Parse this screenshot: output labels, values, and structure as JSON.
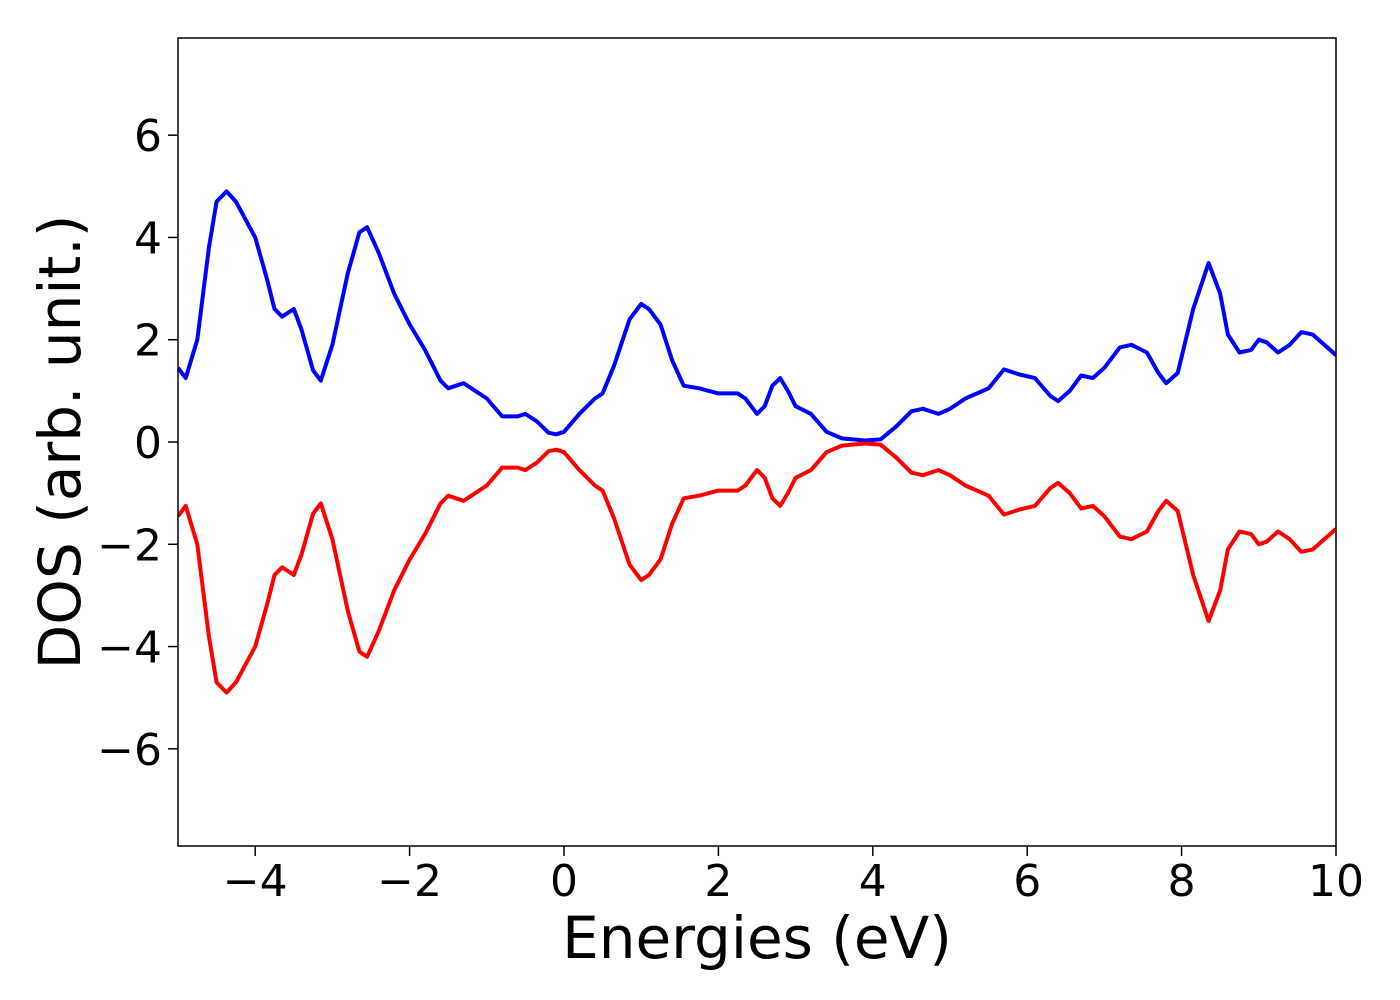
{
  "chart_data": {
    "type": "line",
    "xlabel": "Energies (eV)",
    "ylabel": "DOS (arb. unit.)",
    "x": [
      -5,
      -4.9,
      -4.75,
      -4.6,
      -4.5,
      -4.37,
      -4.25,
      -4.0,
      -3.85,
      -3.75,
      -3.65,
      -3.5,
      -3.4,
      -3.25,
      -3.15,
      -3.0,
      -2.8,
      -2.65,
      -2.55,
      -2.4,
      -2.2,
      -2.0,
      -1.8,
      -1.6,
      -1.5,
      -1.3,
      -1.2,
      -1.0,
      -0.8,
      -0.6,
      -0.5,
      -0.35,
      -0.2,
      -0.1,
      0,
      0.2,
      0.4,
      0.5,
      0.65,
      0.85,
      1.0,
      1.1,
      1.25,
      1.4,
      1.55,
      1.75,
      2.0,
      2.25,
      2.35,
      2.5,
      2.6,
      2.7,
      2.8,
      2.9,
      3.0,
      3.2,
      3.4,
      3.6,
      3.9,
      4.1,
      4.3,
      4.5,
      4.65,
      4.85,
      5.0,
      5.2,
      5.5,
      5.7,
      5.9,
      6.1,
      6.3,
      6.4,
      6.55,
      6.7,
      6.85,
      7.0,
      7.2,
      7.35,
      7.55,
      7.7,
      7.8,
      7.95,
      8.15,
      8.35,
      8.5,
      8.6,
      8.75,
      8.9,
      9.0,
      9.1,
      9.25,
      9.4,
      9.55,
      9.7,
      10.0
    ],
    "series": [
      {
        "color": "#0000ff",
        "values": [
          1.45,
          1.25,
          2.0,
          3.8,
          4.7,
          4.9,
          4.7,
          4.0,
          3.2,
          2.6,
          2.45,
          2.6,
          2.2,
          1.4,
          1.2,
          1.9,
          3.3,
          4.1,
          4.2,
          3.7,
          2.9,
          2.3,
          1.8,
          1.2,
          1.05,
          1.15,
          1.05,
          0.85,
          0.5,
          0.5,
          0.55,
          0.4,
          0.18,
          0.15,
          0.2,
          0.55,
          0.85,
          0.95,
          1.5,
          2.4,
          2.7,
          2.6,
          2.3,
          1.6,
          1.1,
          1.05,
          0.95,
          0.95,
          0.85,
          0.55,
          0.7,
          1.1,
          1.25,
          1.0,
          0.7,
          0.55,
          0.2,
          0.07,
          0.03,
          0.05,
          0.3,
          0.6,
          0.65,
          0.55,
          0.65,
          0.85,
          1.05,
          1.42,
          1.32,
          1.25,
          0.9,
          0.8,
          1.0,
          1.3,
          1.25,
          1.45,
          1.85,
          1.9,
          1.75,
          1.35,
          1.15,
          1.35,
          2.6,
          3.5,
          2.9,
          2.1,
          1.75,
          1.8,
          2.0,
          1.95,
          1.75,
          1.9,
          2.15,
          2.1,
          1.7
        ]
      },
      {
        "color": "#ff0000",
        "values": [
          -1.45,
          -1.25,
          -2.0,
          -3.8,
          -4.7,
          -4.9,
          -4.7,
          -4.0,
          -3.2,
          -2.6,
          -2.45,
          -2.6,
          -2.2,
          -1.4,
          -1.2,
          -1.9,
          -3.3,
          -4.1,
          -4.2,
          -3.7,
          -2.9,
          -2.3,
          -1.8,
          -1.2,
          -1.05,
          -1.15,
          -1.05,
          -0.85,
          -0.5,
          -0.5,
          -0.55,
          -0.4,
          -0.18,
          -0.15,
          -0.2,
          -0.55,
          -0.85,
          -0.95,
          -1.5,
          -2.4,
          -2.7,
          -2.6,
          -2.3,
          -1.6,
          -1.1,
          -1.05,
          -0.95,
          -0.95,
          -0.85,
          -0.55,
          -0.7,
          -1.1,
          -1.25,
          -1.0,
          -0.7,
          -0.55,
          -0.2,
          -0.07,
          -0.03,
          -0.05,
          -0.3,
          -0.6,
          -0.65,
          -0.55,
          -0.65,
          -0.85,
          -1.05,
          -1.42,
          -1.32,
          -1.25,
          -0.9,
          -0.8,
          -1.0,
          -1.3,
          -1.25,
          -1.45,
          -1.85,
          -1.9,
          -1.75,
          -1.35,
          -1.15,
          -1.35,
          -2.6,
          -3.5,
          -2.9,
          -2.1,
          -1.75,
          -1.8,
          -2.0,
          -1.95,
          -1.75,
          -1.9,
          -2.15,
          -2.1,
          -1.7
        ]
      }
    ],
    "xlim": [
      -5,
      10
    ],
    "xticks": [
      {
        "value": -4,
        "label": "−4"
      },
      {
        "value": -2,
        "label": "−2"
      },
      0,
      2,
      4,
      6,
      8,
      10
    ],
    "ylim": [
      -7.9,
      7.9
    ],
    "yticks": [
      {
        "value": -6,
        "label": "−6"
      },
      {
        "value": -4,
        "label": "−4"
      },
      {
        "value": -2,
        "label": "−2"
      },
      0,
      2,
      4,
      6
    ],
    "grid": false
  }
}
